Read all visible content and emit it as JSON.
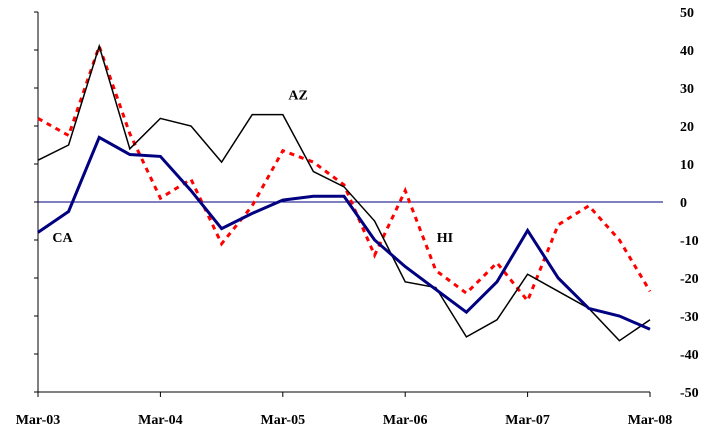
{
  "chart_data": {
    "type": "line",
    "title": "",
    "xlabel": "",
    "ylabel": "",
    "x_ticks": [
      "Mar-03",
      "Mar-04",
      "Mar-05",
      "Mar-06",
      "Mar-07",
      "Mar-08"
    ],
    "y_ticks": [
      "50",
      "40",
      "30",
      "20",
      "10",
      "0",
      "-10",
      "-20",
      "-30",
      "-40",
      "-50"
    ],
    "ylim": [
      -50,
      50
    ],
    "y_axis_side": "right",
    "grid": false,
    "legend": "none",
    "reference_line": {
      "value": 0,
      "color": "#000080"
    },
    "series": [
      {
        "name": "CA",
        "color": "#000080",
        "style": "solid-thick",
        "values": [
          -8,
          -2.5,
          17,
          12.5,
          12,
          3,
          -7,
          -3,
          0.5,
          1.5,
          1.5,
          -10,
          -17,
          -23,
          -29,
          -21,
          -7.5,
          -20,
          -28,
          -30,
          -33.5
        ]
      },
      {
        "name": "AZ",
        "color": "#000000",
        "style": "solid-thin",
        "values": [
          11,
          15,
          41,
          14,
          22,
          20,
          10.5,
          23,
          23,
          8,
          4,
          -5,
          -21,
          -22.5,
          -35.5,
          -31,
          -19,
          -23.5,
          -28,
          -36.5,
          -31
        ]
      },
      {
        "name": "HI",
        "color": "#ff0000",
        "style": "dotted",
        "values": [
          22,
          17.5,
          41,
          18,
          1,
          6,
          -11,
          -1,
          13.5,
          10.5,
          4.5,
          -14,
          3,
          -18,
          -24,
          -16,
          -26,
          -6,
          -1,
          -10,
          -23.5
        ]
      }
    ],
    "annotations": [
      {
        "text": "AZ",
        "x": 8.5,
        "y": 27
      },
      {
        "text": "CA",
        "x": 0.8,
        "y": -10.5
      },
      {
        "text": "HI",
        "x": 13.3,
        "y": -10.5
      }
    ]
  }
}
